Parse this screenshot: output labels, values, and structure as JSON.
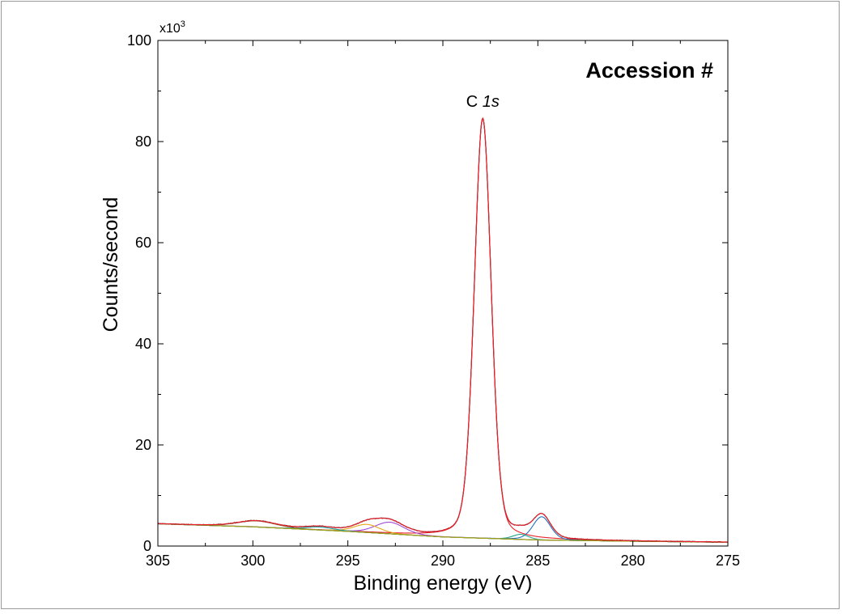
{
  "chart_data": {
    "type": "line",
    "title": "Accession #",
    "annotation": {
      "prefix": "C ",
      "italic": "1s",
      "x": 287.9
    },
    "xlabel": "Binding energy (eV)",
    "ylabel": "Counts/second",
    "y_multiplier_label": "x10",
    "y_multiplier_exp": "3",
    "xlim": [
      305,
      275
    ],
    "ylim": [
      0,
      100
    ],
    "x_ticks": [
      305,
      300,
      295,
      290,
      285,
      280,
      275
    ],
    "y_ticks": [
      0,
      20,
      40,
      60,
      80,
      100
    ],
    "grid": false,
    "legend": "none",
    "baseline": {
      "x": [
        305,
        300,
        295,
        290,
        285,
        280,
        275
      ],
      "y": [
        4.4,
        3.8,
        2.9,
        1.8,
        1.2,
        0.95,
        0.75
      ]
    },
    "series": [
      {
        "kind": "envelope",
        "color": "#222222",
        "noise": true
      },
      {
        "kind": "fit",
        "color": "#e8202a"
      },
      {
        "kind": "component",
        "color": "#e8202a",
        "center": 287.9,
        "height": 83.0,
        "fwhm": 1.05
      },
      {
        "kind": "component",
        "color": "#1f6fbf",
        "center": 284.8,
        "height": 4.6,
        "fwhm": 1.1
      },
      {
        "kind": "component",
        "color": "#2aa58a",
        "center": 285.9,
        "height": 1.0,
        "fwhm": 1.0
      },
      {
        "kind": "component",
        "color": "#a24bd6",
        "center": 292.8,
        "height": 2.3,
        "fwhm": 1.8
      },
      {
        "kind": "component",
        "color": "#e7a51a",
        "center": 294.0,
        "height": 1.6,
        "fwhm": 1.6
      },
      {
        "kind": "component",
        "color": "#1aa3a3",
        "center": 296.5,
        "height": 0.6,
        "fwhm": 1.8
      },
      {
        "kind": "component",
        "color": "#8a6a3a",
        "center": 299.8,
        "height": 1.2,
        "fwhm": 2.4
      },
      {
        "kind": "component",
        "color": "#a3a316",
        "center": 301.5,
        "height": 0.0,
        "fwhm": 1.0
      }
    ]
  }
}
